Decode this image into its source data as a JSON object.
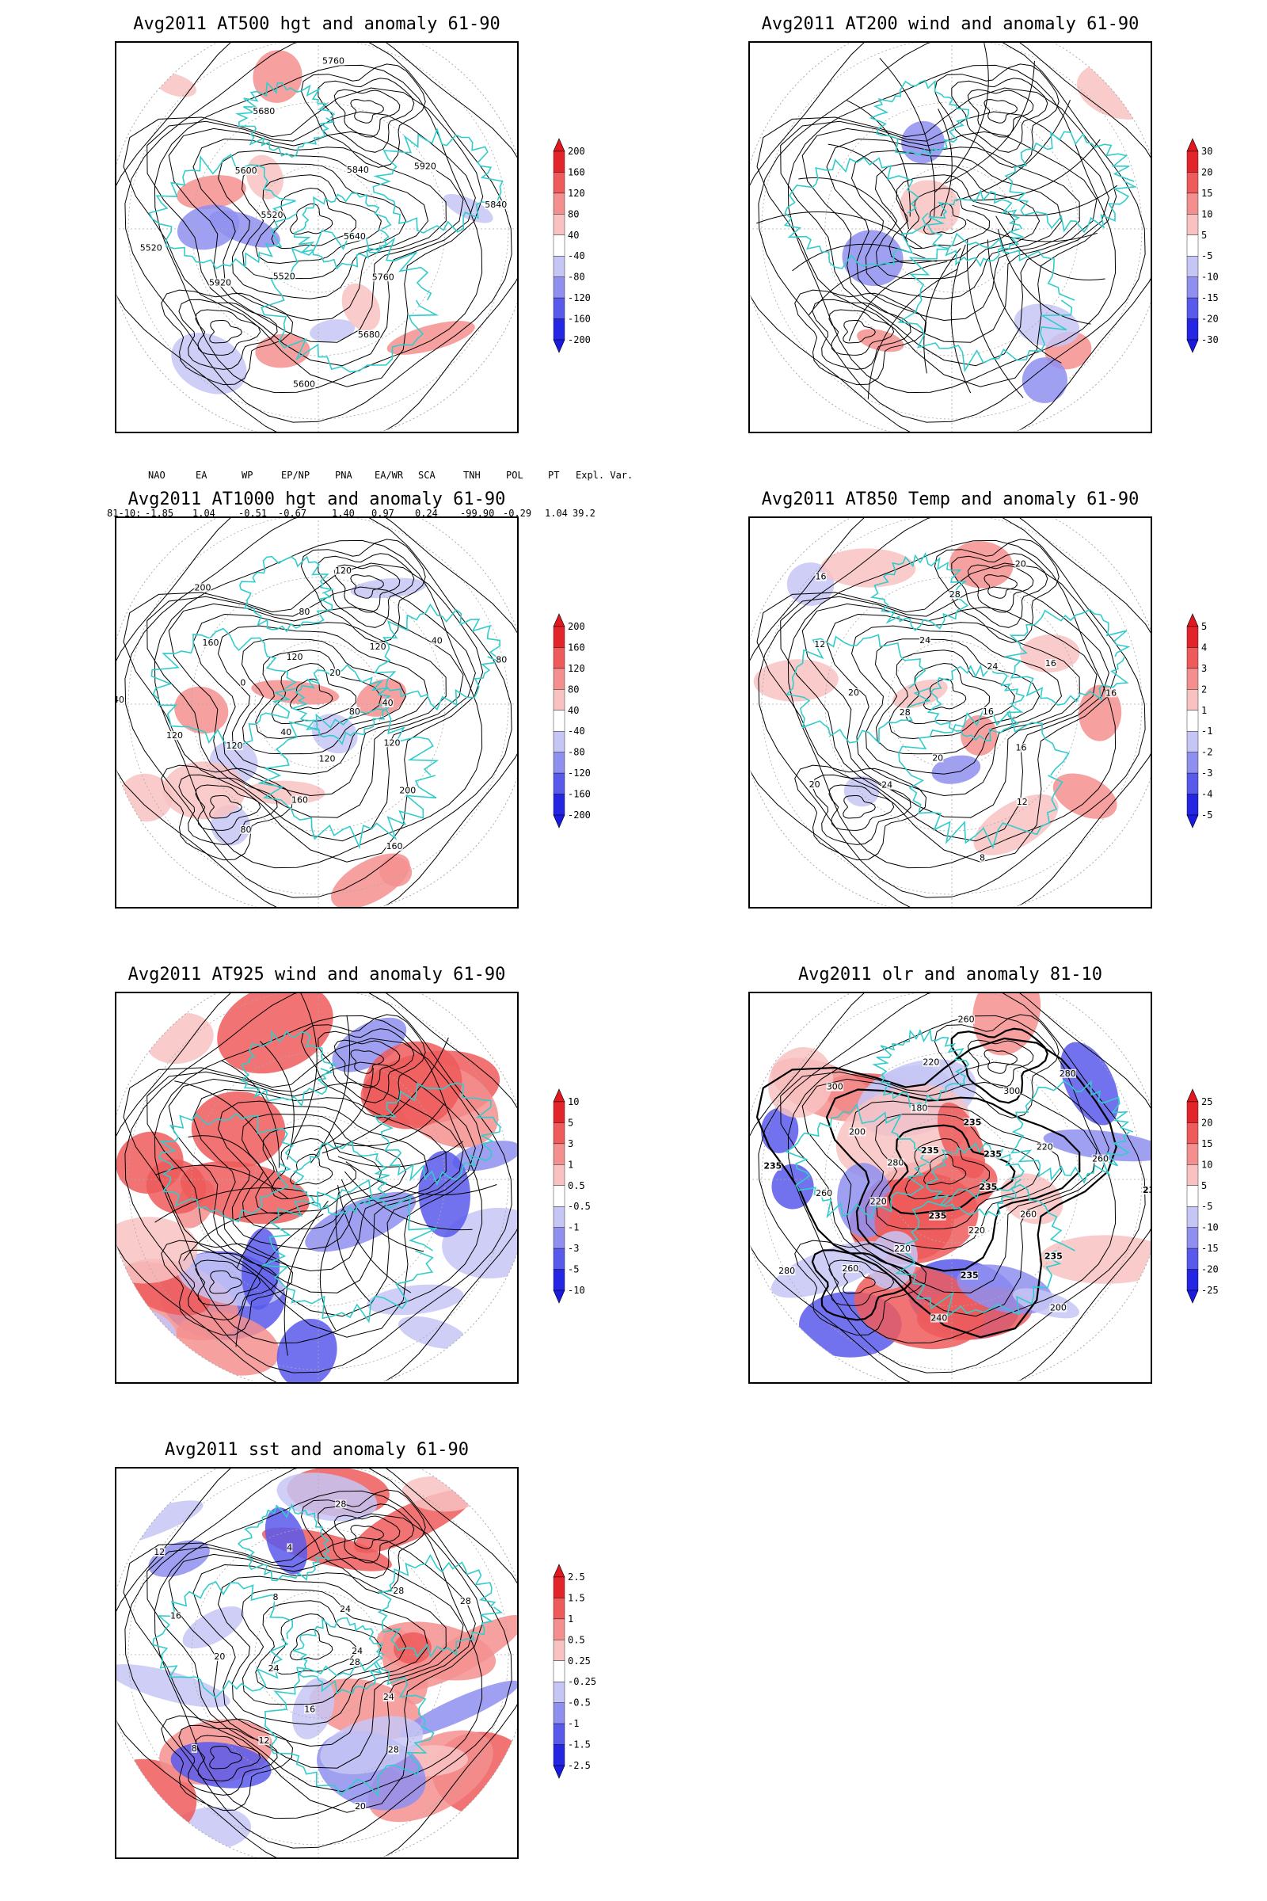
{
  "colors": {
    "land": "#33cccc",
    "contour": "#000000",
    "grid": "#aaaaaa"
  },
  "panels": [
    {
      "id": "at500",
      "title": "Avg2011 AT500 hgt and anomaly 61-90",
      "scale_labels": [
        "200",
        "160",
        "120",
        "80",
        "40",
        "-40",
        "-80",
        "-120",
        "-160",
        "-200"
      ],
      "contour_labels": [
        "5640",
        "5760",
        "5680",
        "5600",
        "5520",
        "5920",
        "5520",
        "5520",
        "5600",
        "5680",
        "5760",
        "5840",
        "5920",
        "5840"
      ]
    },
    {
      "id": "at200",
      "title": "Avg2011 AT200 wind and anomaly 61-90",
      "scale_labels": [
        "30",
        "20",
        "15",
        "10",
        "5",
        "-5",
        "-10",
        "-15",
        "-20",
        "-30"
      ],
      "contour_labels": []
    },
    {
      "id": "at1000",
      "title": "Avg2011 AT1000 hgt and anomaly 61-90",
      "scale_labels": [
        "200",
        "160",
        "120",
        "80",
        "40",
        "-40",
        "-80",
        "-120",
        "-160",
        "-200"
      ],
      "contour_labels": [
        "80",
        "120",
        "200",
        "160",
        "120",
        "160",
        "80",
        "40",
        "120",
        "120",
        "40",
        "0",
        "160",
        "200",
        "120",
        "80",
        "120",
        "20",
        "120",
        "40",
        "80",
        "40"
      ]
    },
    {
      "id": "at850",
      "title": "Avg2011 AT850 Temp and anomaly 61-90",
      "scale_labels": [
        "5",
        "4",
        "3",
        "2",
        "1",
        "-1",
        "-2",
        "-3",
        "-4",
        "-5"
      ],
      "contour_labels": [
        "16",
        "16",
        "12",
        "8",
        "20",
        "24",
        "20",
        "28",
        "20",
        "12",
        "16",
        "24",
        "28",
        "20",
        "24",
        "16",
        "16"
      ]
    },
    {
      "id": "at925",
      "title": "Avg2011 AT925 wind and anomaly 61-90",
      "scale_labels": [
        "10",
        "5",
        "3",
        "1",
        "0.5",
        "-0.5",
        "-1",
        "-3",
        "-5",
        "-10"
      ],
      "contour_labels": []
    },
    {
      "id": "olr",
      "title": "Avg2011 olr and anomaly 81-10",
      "scale_labels": [
        "25",
        "20",
        "15",
        "10",
        "5",
        "-5",
        "-10",
        "-15",
        "-20",
        "-25"
      ],
      "contour_labels": [
        "235",
        "260",
        "235",
        "200",
        "220",
        "235",
        "240",
        "235",
        "220",
        "260",
        "280",
        "220",
        "260",
        "235",
        "280",
        "200",
        "300",
        "235",
        "180",
        "220",
        "260",
        "235",
        "300",
        "280",
        "235",
        "220",
        "260",
        "235"
      ]
    },
    {
      "id": "sst",
      "title": "Avg2011 sst and anomaly 61-90",
      "scale_labels": [
        "2.5",
        "1.5",
        "1",
        "0.5",
        "0.25",
        "-0.25",
        "-0.5",
        "-1",
        "-1.5",
        "-2.5"
      ],
      "contour_labels": [
        "28",
        "24",
        "28",
        "20",
        "16",
        "12",
        "8",
        "24",
        "20",
        "16",
        "12",
        "8",
        "4",
        "28",
        "24",
        "28",
        "28",
        "24"
      ]
    }
  ],
  "indices": {
    "header": [
      "NAO",
      "EA",
      "WP",
      "EP/NP",
      "PNA",
      "EA/WR",
      "SCA",
      "TNH",
      "POL",
      "PT",
      "Expl. Var."
    ],
    "row_label": "81-10:",
    "values": [
      "-1.85",
      "1.04",
      "-0.51",
      "-0.67",
      "1.40",
      "0.97",
      "0.24",
      "-99.90",
      "-0.29",
      "1.04",
      "39.2"
    ]
  }
}
